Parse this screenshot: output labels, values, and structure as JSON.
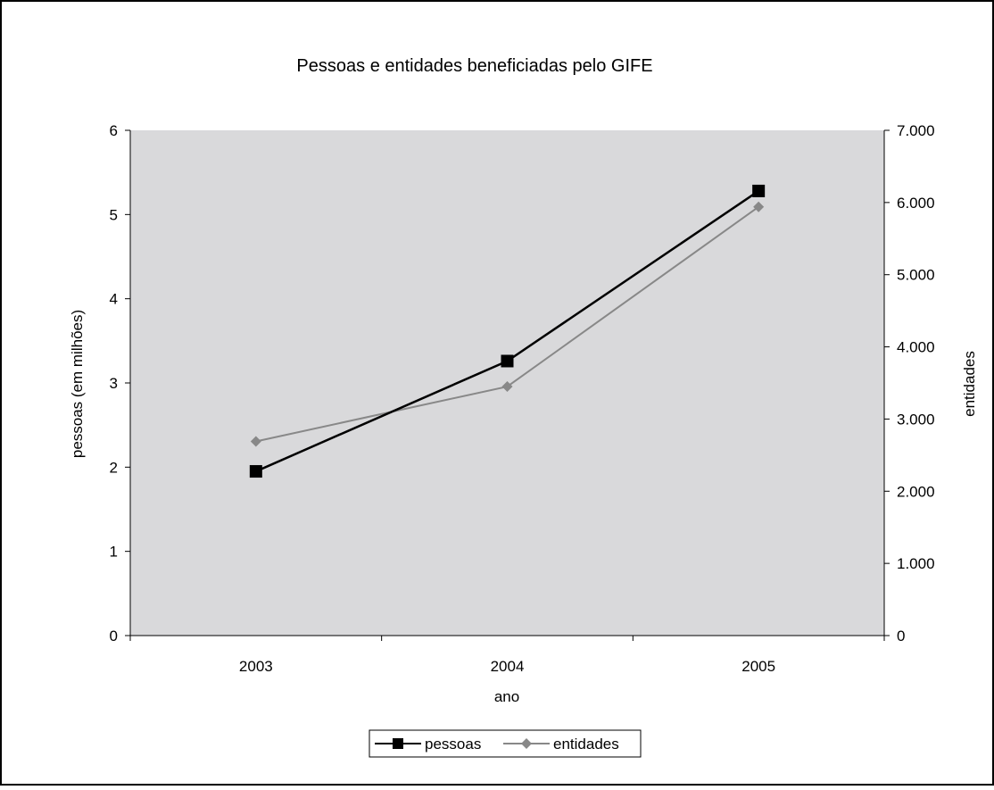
{
  "chart_data": {
    "type": "line",
    "title": "Pessoas e entidades beneficiadas pelo GIFE",
    "xlabel": "ano",
    "ylabel": "pessoas (em milhões)",
    "y2label": "entidades",
    "categories": [
      "2003",
      "2004",
      "2005"
    ],
    "ylim": [
      0,
      6
    ],
    "y2lim": [
      0,
      7000
    ],
    "y_ticks": [
      "0",
      "1",
      "2",
      "3",
      "4",
      "5",
      "6"
    ],
    "y2_ticks": [
      "0",
      "1.000",
      "2.000",
      "3.000",
      "4.000",
      "5.000",
      "6.000",
      "7.000"
    ],
    "grid": false,
    "plot_background": "#d9d9db",
    "legend_position": "bottom",
    "series": [
      {
        "name": "pessoas",
        "axis": "left",
        "values": [
          1.95,
          3.26,
          5.28
        ],
        "color": "#000000",
        "marker": "square"
      },
      {
        "name": "entidades",
        "axis": "right",
        "values": [
          2690,
          3450,
          5940
        ],
        "color": "#888888",
        "marker": "diamond"
      }
    ]
  }
}
